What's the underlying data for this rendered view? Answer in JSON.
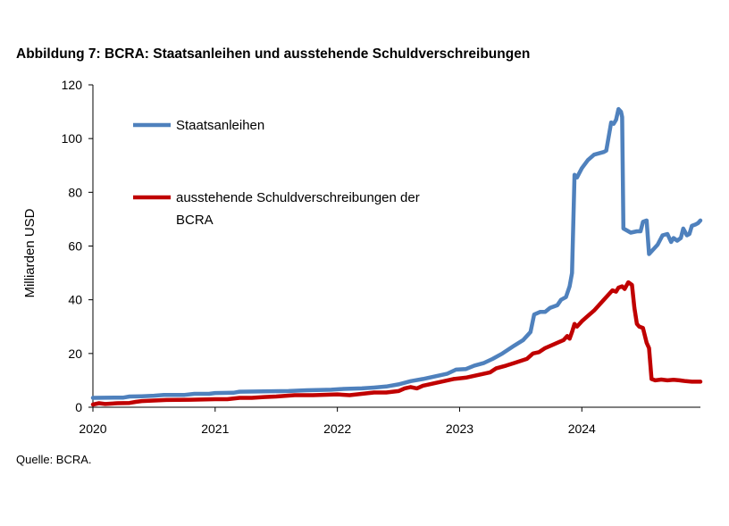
{
  "title": "Abbildung 7: BCRA: Staatsanleihen und ausstehende Schuldverschreibungen",
  "source": "Quelle: BCRA.",
  "chart_data": {
    "type": "line",
    "ylabel": "Milliarden USD",
    "xlabel": "",
    "ylim": [
      0,
      120
    ],
    "yticks": [
      0,
      20,
      40,
      60,
      80,
      100,
      120
    ],
    "xlim": [
      2020.0,
      2024.97
    ],
    "xticks": [
      {
        "label": "2020",
        "x": 2020
      },
      {
        "label": "2021",
        "x": 2021
      },
      {
        "label": "2022",
        "x": 2022
      },
      {
        "label": "2023",
        "x": 2023
      },
      {
        "label": "2024",
        "x": 2024
      }
    ],
    "grid": false,
    "legend_position": "top-left",
    "series": [
      {
        "name": "Staatsanleihen",
        "color": "#4F81BD",
        "points": [
          [
            2020.0,
            3.5
          ],
          [
            2020.25,
            3.6
          ],
          [
            2020.3,
            4.0
          ],
          [
            2020.4,
            4.1
          ],
          [
            2020.5,
            4.3
          ],
          [
            2020.58,
            4.6
          ],
          [
            2020.75,
            4.6
          ],
          [
            2020.83,
            5.0
          ],
          [
            2020.95,
            5.0
          ],
          [
            2021.0,
            5.3
          ],
          [
            2021.15,
            5.4
          ],
          [
            2021.2,
            5.8
          ],
          [
            2021.4,
            5.9
          ],
          [
            2021.6,
            6.0
          ],
          [
            2021.75,
            6.3
          ],
          [
            2021.95,
            6.5
          ],
          [
            2022.05,
            6.8
          ],
          [
            2022.2,
            7.0
          ],
          [
            2022.3,
            7.3
          ],
          [
            2022.4,
            7.7
          ],
          [
            2022.5,
            8.5
          ],
          [
            2022.6,
            9.7
          ],
          [
            2022.7,
            10.5
          ],
          [
            2022.8,
            11.5
          ],
          [
            2022.9,
            12.5
          ],
          [
            2022.97,
            14.0
          ],
          [
            2023.05,
            14.2
          ],
          [
            2023.12,
            15.5
          ],
          [
            2023.2,
            16.5
          ],
          [
            2023.27,
            18.0
          ],
          [
            2023.35,
            20.0
          ],
          [
            2023.45,
            23.0
          ],
          [
            2023.52,
            25.0
          ],
          [
            2023.58,
            28.0
          ],
          [
            2023.61,
            34.5
          ],
          [
            2023.66,
            35.5
          ],
          [
            2023.7,
            35.5
          ],
          [
            2023.74,
            37.0
          ],
          [
            2023.8,
            38.0
          ],
          [
            2023.83,
            40.0
          ],
          [
            2023.87,
            41.0
          ],
          [
            2023.9,
            45.0
          ],
          [
            2023.92,
            50.0
          ],
          [
            2023.94,
            86.5
          ],
          [
            2023.96,
            85.5
          ],
          [
            2024.0,
            89.0
          ],
          [
            2024.05,
            92.0
          ],
          [
            2024.1,
            94.0
          ],
          [
            2024.14,
            94.5
          ],
          [
            2024.18,
            95.0
          ],
          [
            2024.2,
            95.5
          ],
          [
            2024.24,
            106.0
          ],
          [
            2024.26,
            105.5
          ],
          [
            2024.28,
            107.0
          ],
          [
            2024.3,
            111.0
          ],
          [
            2024.32,
            110.0
          ],
          [
            2024.33,
            108.0
          ],
          [
            2024.34,
            66.5
          ],
          [
            2024.36,
            66.0
          ],
          [
            2024.4,
            65.0
          ],
          [
            2024.45,
            65.5
          ],
          [
            2024.48,
            65.5
          ],
          [
            2024.5,
            69.0
          ],
          [
            2024.53,
            69.5
          ],
          [
            2024.55,
            57.0
          ],
          [
            2024.58,
            58.5
          ],
          [
            2024.62,
            60.5
          ],
          [
            2024.66,
            64.0
          ],
          [
            2024.7,
            64.5
          ],
          [
            2024.73,
            61.5
          ],
          [
            2024.75,
            63.0
          ],
          [
            2024.78,
            62.0
          ],
          [
            2024.81,
            63.0
          ],
          [
            2024.83,
            66.5
          ],
          [
            2024.86,
            64.0
          ],
          [
            2024.88,
            64.5
          ],
          [
            2024.9,
            67.5
          ],
          [
            2024.93,
            68.0
          ],
          [
            2024.95,
            68.5
          ],
          [
            2024.97,
            69.5
          ]
        ]
      },
      {
        "name": "ausstehende Schuldverschreibungen der BCRA",
        "color": "#C00000",
        "points": [
          [
            2020.0,
            1.0
          ],
          [
            2020.05,
            1.5
          ],
          [
            2020.1,
            1.2
          ],
          [
            2020.2,
            1.5
          ],
          [
            2020.3,
            1.6
          ],
          [
            2020.35,
            2.0
          ],
          [
            2020.4,
            2.3
          ],
          [
            2020.5,
            2.5
          ],
          [
            2020.6,
            2.7
          ],
          [
            2020.8,
            2.8
          ],
          [
            2021.0,
            3.0
          ],
          [
            2021.1,
            3.0
          ],
          [
            2021.2,
            3.5
          ],
          [
            2021.3,
            3.5
          ],
          [
            2021.4,
            3.8
          ],
          [
            2021.5,
            4.0
          ],
          [
            2021.65,
            4.5
          ],
          [
            2021.8,
            4.5
          ],
          [
            2022.0,
            4.8
          ],
          [
            2022.1,
            4.5
          ],
          [
            2022.2,
            5.0
          ],
          [
            2022.3,
            5.5
          ],
          [
            2022.4,
            5.5
          ],
          [
            2022.5,
            6.0
          ],
          [
            2022.55,
            7.0
          ],
          [
            2022.6,
            7.5
          ],
          [
            2022.65,
            7.0
          ],
          [
            2022.7,
            8.0
          ],
          [
            2022.75,
            8.5
          ],
          [
            2022.8,
            9.0
          ],
          [
            2022.9,
            10.0
          ],
          [
            2022.95,
            10.5
          ],
          [
            2023.05,
            11.0
          ],
          [
            2023.15,
            12.0
          ],
          [
            2023.25,
            13.0
          ],
          [
            2023.3,
            14.5
          ],
          [
            2023.38,
            15.5
          ],
          [
            2023.45,
            16.5
          ],
          [
            2023.55,
            18.0
          ],
          [
            2023.6,
            20.0
          ],
          [
            2023.65,
            20.5
          ],
          [
            2023.7,
            22.0
          ],
          [
            2023.75,
            23.0
          ],
          [
            2023.8,
            24.0
          ],
          [
            2023.85,
            25.0
          ],
          [
            2023.88,
            26.5
          ],
          [
            2023.9,
            25.5
          ],
          [
            2023.92,
            28.0
          ],
          [
            2023.94,
            31.0
          ],
          [
            2023.96,
            30.0
          ],
          [
            2024.0,
            32.0
          ],
          [
            2024.05,
            34.0
          ],
          [
            2024.1,
            36.0
          ],
          [
            2024.14,
            38.0
          ],
          [
            2024.18,
            40.0
          ],
          [
            2024.22,
            42.0
          ],
          [
            2024.25,
            43.5
          ],
          [
            2024.28,
            43.0
          ],
          [
            2024.3,
            44.5
          ],
          [
            2024.33,
            45.0
          ],
          [
            2024.35,
            44.0
          ],
          [
            2024.38,
            46.5
          ],
          [
            2024.41,
            45.5
          ],
          [
            2024.43,
            37.0
          ],
          [
            2024.45,
            31.0
          ],
          [
            2024.47,
            30.0
          ],
          [
            2024.5,
            29.5
          ],
          [
            2024.53,
            24.0
          ],
          [
            2024.55,
            22.0
          ],
          [
            2024.57,
            10.5
          ],
          [
            2024.6,
            10.0
          ],
          [
            2024.65,
            10.3
          ],
          [
            2024.7,
            10.0
          ],
          [
            2024.75,
            10.2
          ],
          [
            2024.8,
            10.0
          ],
          [
            2024.85,
            9.7
          ],
          [
            2024.9,
            9.5
          ],
          [
            2024.97,
            9.5
          ]
        ]
      }
    ],
    "legend": [
      {
        "lines": [
          "Staatsanleihen"
        ],
        "color": "#4F81BD"
      },
      {
        "lines": [
          "ausstehende Schuldverschreibungen der",
          "BCRA"
        ],
        "color": "#C00000"
      }
    ]
  }
}
